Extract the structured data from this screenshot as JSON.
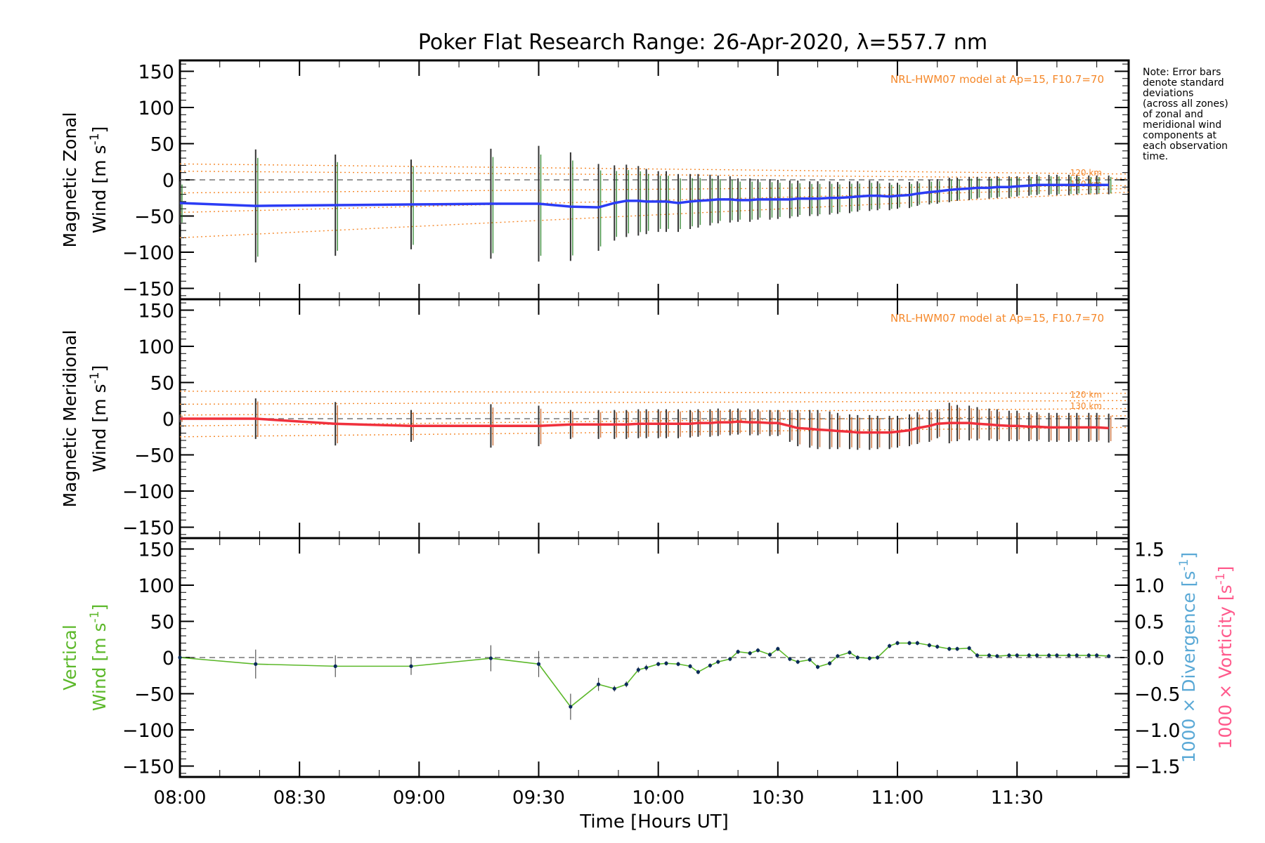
{
  "title": "Poker Flat Research Range: 26-Apr-2020, λ=557.7 nm",
  "note": "Note: Error bars\ndenote standard\ndeviations\n(across all zones)\nof zonal and\nmeridional wind\ncomponents at\neach observation\ntime.",
  "colors": {
    "zonal": "#2b3cf5",
    "meridional": "#f0303c",
    "vertical": "#5cb82a",
    "model": "#f5882a",
    "divergence": "#5aa9d6",
    "vorticity": "#ff5a8c"
  },
  "chart_data": [
    {
      "type": "line",
      "panel": "zonal",
      "ylabel_line1": "Magnetic Zonal",
      "ylabel_line2": "Wind [m s",
      "ylabel_sup": "-1",
      "ylabel_close": "]",
      "ylim": [
        -165,
        165
      ],
      "yticks": [
        150,
        100,
        50,
        0,
        -50,
        -100,
        -150
      ],
      "model_label": "NRL-HWM07 model at Ap=15, F10.7=70",
      "model_km_labels": [
        "120 km",
        "130 km"
      ],
      "x": [
        "08:00",
        "08:19",
        "08:39",
        "08:58",
        "09:18",
        "09:30",
        "09:38",
        "09:45",
        "09:49",
        "09:52",
        "09:55",
        "09:57",
        "10:00",
        "10:02",
        "10:05",
        "10:08",
        "10:10",
        "10:13",
        "10:15",
        "10:18",
        "10:20",
        "10:23",
        "10:25",
        "10:28",
        "10:30",
        "10:33",
        "10:35",
        "10:38",
        "10:40",
        "10:43",
        "10:45",
        "10:48",
        "10:50",
        "10:53",
        "10:55",
        "10:58",
        "11:00",
        "11:03",
        "11:05",
        "11:08",
        "11:10",
        "11:13",
        "11:15",
        "11:18",
        "11:20",
        "11:23",
        "11:25",
        "11:28",
        "11:30",
        "11:33",
        "11:35",
        "11:38",
        "11:40",
        "11:43",
        "11:45",
        "11:48",
        "11:50",
        "11:53"
      ],
      "series": [
        {
          "values": [
            -32,
            -36,
            -35,
            -34,
            -33,
            -33,
            -37,
            -38,
            -32,
            -29,
            -29,
            -30,
            -30,
            -30,
            -32,
            -30,
            -29,
            -28,
            -27,
            -27,
            -28,
            -28,
            -27,
            -27,
            -27,
            -27,
            -26,
            -26,
            -26,
            -25,
            -25,
            -24,
            -23,
            -22,
            -22,
            -23,
            -22,
            -21,
            -19,
            -17,
            -16,
            -14,
            -13,
            -12,
            -11,
            -11,
            -10,
            -10,
            -9,
            -8,
            -7,
            -7,
            -7,
            -7,
            -7,
            -7,
            -7,
            -7
          ],
          "errors": [
            30,
            78,
            70,
            62,
            76,
            80,
            75,
            60,
            52,
            50,
            48,
            45,
            42,
            42,
            40,
            38,
            37,
            35,
            33,
            32,
            30,
            30,
            28,
            28,
            27,
            26,
            25,
            24,
            24,
            23,
            22,
            22,
            21,
            21,
            20,
            19,
            18,
            18,
            17,
            17,
            17,
            17,
            16,
            16,
            15,
            15,
            15,
            15,
            14,
            14,
            14,
            14,
            14,
            14,
            13,
            13,
            13,
            13
          ]
        }
      ],
      "model_curves": [
        {
          "y_start": 22,
          "y_end": 8
        },
        {
          "y_start": 12,
          "y_end": 2
        },
        {
          "y_start": -18,
          "y_end": -8
        },
        {
          "y_start": -45,
          "y_end": -12
        },
        {
          "y_start": -80,
          "y_end": -17
        }
      ]
    },
    {
      "type": "line",
      "panel": "meridional",
      "ylabel_line1": "Magnetic Meridional",
      "ylabel_line2": "Wind [m s",
      "ylabel_sup": "-1",
      "ylabel_close": "]",
      "ylim": [
        -165,
        165
      ],
      "yticks": [
        150,
        100,
        50,
        0,
        -50,
        -100,
        -150
      ],
      "model_label": "NRL-HWM07 model at Ap=15, F10.7=70",
      "model_km_labels": [
        "120 km",
        "130 km"
      ],
      "x": [
        "08:00",
        "08:19",
        "08:39",
        "08:58",
        "09:18",
        "09:30",
        "09:38",
        "09:45",
        "09:49",
        "09:52",
        "09:55",
        "09:57",
        "10:00",
        "10:02",
        "10:05",
        "10:08",
        "10:10",
        "10:13",
        "10:15",
        "10:18",
        "10:20",
        "10:23",
        "10:25",
        "10:28",
        "10:30",
        "10:33",
        "10:35",
        "10:38",
        "10:40",
        "10:43",
        "10:45",
        "10:48",
        "10:50",
        "10:53",
        "10:55",
        "10:58",
        "11:00",
        "11:03",
        "11:05",
        "11:08",
        "11:10",
        "11:13",
        "11:15",
        "11:18",
        "11:20",
        "11:23",
        "11:25",
        "11:28",
        "11:30",
        "11:33",
        "11:35",
        "11:38",
        "11:40",
        "11:43",
        "11:45",
        "11:48",
        "11:50",
        "11:53"
      ],
      "series": [
        {
          "values": [
            0,
            0,
            -7,
            -10,
            -10,
            -10,
            -8,
            -8,
            -8,
            -8,
            -7,
            -7,
            -7,
            -7,
            -7,
            -7,
            -6,
            -6,
            -5,
            -5,
            -4,
            -5,
            -5,
            -6,
            -6,
            -10,
            -13,
            -14,
            -15,
            -16,
            -17,
            -18,
            -19,
            -19,
            -19,
            -19,
            -18,
            -16,
            -13,
            -10,
            -7,
            -6,
            -6,
            -6,
            -7,
            -8,
            -9,
            -10,
            -10,
            -11,
            -11,
            -12,
            -12,
            -12,
            -12,
            -12,
            -12,
            -13
          ],
          "errors": [
            5,
            28,
            30,
            22,
            30,
            28,
            20,
            20,
            20,
            20,
            20,
            20,
            20,
            20,
            20,
            19,
            19,
            19,
            19,
            18,
            18,
            18,
            18,
            18,
            18,
            22,
            25,
            26,
            27,
            26,
            25,
            24,
            24,
            24,
            23,
            23,
            22,
            22,
            22,
            22,
            20,
            28,
            25,
            24,
            23,
            22,
            22,
            21,
            21,
            20,
            20,
            20,
            20,
            20,
            20,
            20,
            20,
            20
          ]
        }
      ],
      "model_curves": [
        {
          "y_start": 38,
          "y_end": 35
        },
        {
          "y_start": 20,
          "y_end": 25
        },
        {
          "y_start": 5,
          "y_end": 14
        },
        {
          "y_start": -10,
          "y_end": 4
        },
        {
          "y_start": -25,
          "y_end": -12
        }
      ]
    },
    {
      "type": "line",
      "panel": "vertical",
      "ylabel_line1": "Vertical",
      "ylabel_line2": "Wind [m s",
      "ylabel_sup": "-1",
      "ylabel_close": "]",
      "ylim": [
        -165,
        165
      ],
      "yticks": [
        150,
        100,
        50,
        0,
        -50,
        -100,
        -150
      ],
      "y2ticks": [
        "1.5",
        "1.0",
        "0.5",
        "0.0",
        "-0.5",
        "-1.0",
        "-1.5"
      ],
      "y2label_div": "1000 × Divergence [s",
      "y2label_vort": "1000 × Vorticity [s",
      "y2label_sup": "-1",
      "y2label_close": "]",
      "xlabel": "Time [Hours UT]",
      "xticks": [
        "08:00",
        "08:30",
        "09:00",
        "09:30",
        "10:00",
        "10:30",
        "11:00",
        "11:30"
      ],
      "x": [
        "08:00",
        "08:19",
        "08:39",
        "08:58",
        "09:18",
        "09:30",
        "09:38",
        "09:45",
        "09:49",
        "09:52",
        "09:55",
        "09:57",
        "10:00",
        "10:02",
        "10:05",
        "10:08",
        "10:10",
        "10:13",
        "10:15",
        "10:18",
        "10:20",
        "10:23",
        "10:25",
        "10:28",
        "10:30",
        "10:33",
        "10:35",
        "10:38",
        "10:40",
        "10:43",
        "10:45",
        "10:48",
        "10:50",
        "10:53",
        "10:55",
        "10:58",
        "11:00",
        "11:03",
        "11:05",
        "11:08",
        "11:10",
        "11:13",
        "11:15",
        "11:18",
        "11:20",
        "11:23",
        "11:25",
        "11:28",
        "11:30",
        "11:33",
        "11:35",
        "11:38",
        "11:40",
        "11:43",
        "11:45",
        "11:48",
        "11:50",
        "11:53"
      ],
      "series": [
        {
          "values": [
            0,
            -9,
            -12,
            -12,
            -1,
            -9,
            -68,
            -37,
            -43,
            -37,
            -17,
            -14,
            -9,
            -8,
            -9,
            -12,
            -20,
            -11,
            -6,
            -2,
            8,
            6,
            10,
            4,
            12,
            -2,
            -6,
            -3,
            -13,
            -8,
            2,
            7,
            0,
            -1,
            0,
            16,
            20,
            20,
            20,
            17,
            15,
            12,
            12,
            13,
            3,
            3,
            2,
            3,
            3,
            3,
            3,
            3,
            3,
            3,
            3,
            3,
            3,
            2
          ],
          "errors": [
            0,
            20,
            15,
            12,
            18,
            18,
            18,
            9,
            4,
            4,
            4,
            4,
            3,
            3,
            3,
            3,
            3,
            3,
            3,
            3,
            3,
            3,
            3,
            3,
            3,
            3,
            3,
            3,
            3,
            3,
            3,
            3,
            3,
            3,
            3,
            3,
            3,
            3,
            3,
            3,
            3,
            3,
            3,
            3,
            3,
            3,
            3,
            3,
            3,
            3,
            3,
            3,
            3,
            3,
            3,
            3,
            3,
            3
          ]
        }
      ]
    }
  ]
}
